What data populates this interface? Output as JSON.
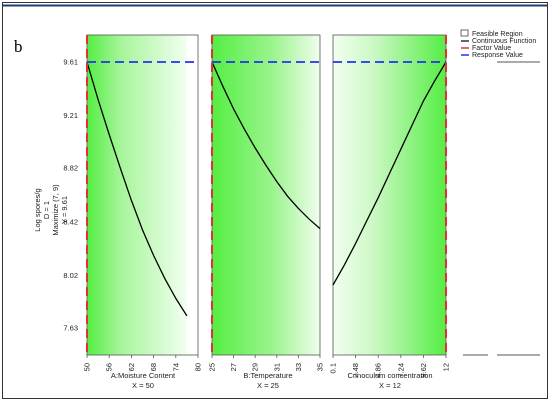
{
  "figure": {
    "panel_label": "b",
    "y_title_lines": [
      "Log spores/g",
      "D = 1",
      "Maximize (7, 9)",
      "Y = 9.61"
    ]
  },
  "legend": {
    "items": [
      {
        "label": "Feasible Region",
        "kind": "box",
        "color": "#444444"
      },
      {
        "label": "Continuous Function",
        "kind": "line",
        "color": "#000000"
      },
      {
        "label": "Factor Value",
        "kind": "line",
        "color": "#e53030"
      },
      {
        "label": "Response Value",
        "kind": "line",
        "color": "#2233ee"
      }
    ]
  },
  "colors": {
    "feasible_dark": "#55ee44",
    "feasible_light": "#f2fff0",
    "curve": "#000000",
    "factor_line": "#e53030",
    "response_line": "#2233ee",
    "top_rule": "#1f3a7a"
  },
  "chart_data": {
    "type": "line",
    "y_axis": {
      "ticks": [
        7.63,
        8.02,
        8.42,
        8.82,
        9.21,
        9.61
      ],
      "ylim": [
        7.63,
        9.61
      ],
      "label": "Log spores/g"
    },
    "response_value": 9.61,
    "panels": [
      {
        "factor": "A:Moisture Content",
        "setting": "X = 50",
        "ticks": [
          "50",
          "56",
          "62",
          "68",
          "74",
          "80"
        ],
        "xlim": [
          50,
          80
        ],
        "factor_value": 50,
        "feasible_range": [
          50,
          77
        ],
        "curve": {
          "x": [
            50,
            53,
            56,
            59,
            62,
            65,
            68,
            71,
            74,
            77
          ],
          "y": [
            9.61,
            9.33,
            9.07,
            8.82,
            8.58,
            8.36,
            8.17,
            8.0,
            7.85,
            7.72
          ]
        }
      },
      {
        "factor": "B:Temperature",
        "setting": "X = 25",
        "ticks": [
          "25",
          "27",
          "29",
          "31",
          "33",
          "35"
        ],
        "xlim": [
          25,
          35
        ],
        "factor_value": 25,
        "feasible_range": [
          25,
          35
        ],
        "curve": {
          "x": [
            25,
            26,
            27,
            28,
            29,
            30,
            31,
            32,
            33,
            34,
            35
          ],
          "y": [
            9.61,
            9.43,
            9.26,
            9.11,
            8.97,
            8.84,
            8.72,
            8.61,
            8.52,
            8.44,
            8.37
          ]
        }
      },
      {
        "factor": "C:Inoculum concentration",
        "setting": "X = 12",
        "ticks": [
          "0.1",
          "2.48",
          "4.86",
          "7.24",
          "9.62",
          "12"
        ],
        "xlim": [
          0.1,
          12
        ],
        "factor_value": 12,
        "feasible_range": [
          0.1,
          12
        ],
        "curve": {
          "x": [
            0.1,
            1.3,
            2.48,
            3.67,
            4.86,
            6.05,
            7.24,
            8.43,
            9.62,
            10.81,
            12
          ],
          "y": [
            7.95,
            8.1,
            8.26,
            8.43,
            8.6,
            8.78,
            8.96,
            9.14,
            9.32,
            9.47,
            9.61
          ]
        }
      }
    ]
  }
}
